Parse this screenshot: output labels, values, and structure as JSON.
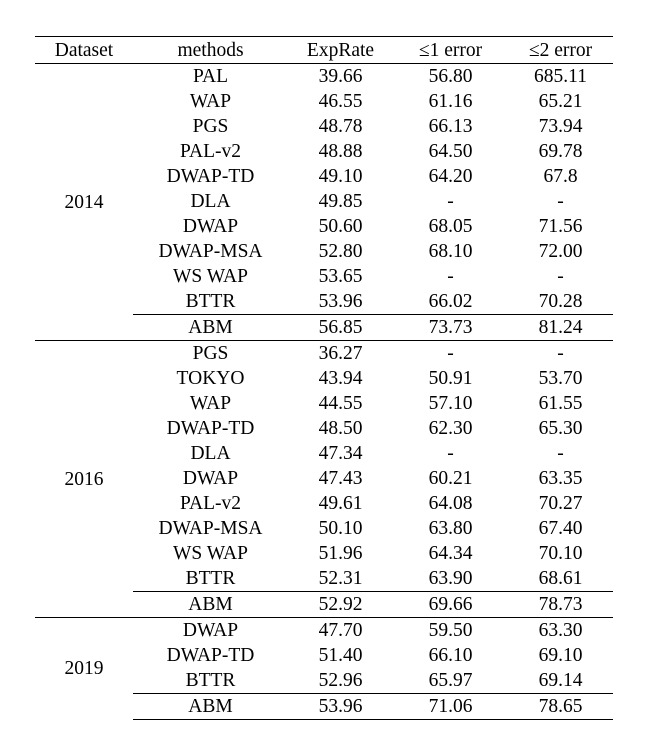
{
  "table": {
    "headers": [
      "Dataset",
      "methods",
      "ExpRate",
      "≤1 error",
      "≤2 error"
    ],
    "groups": [
      {
        "dataset": "2014",
        "rows": [
          {
            "method": "PAL",
            "exprate": "39.66",
            "e1": "56.80",
            "e2": "685.11"
          },
          {
            "method": "WAP",
            "exprate": "46.55",
            "e1": "61.16",
            "e2": "65.21"
          },
          {
            "method": "PGS",
            "exprate": "48.78",
            "e1": "66.13",
            "e2": "73.94"
          },
          {
            "method": "PAL-v2",
            "exprate": "48.88",
            "e1": "64.50",
            "e2": "69.78"
          },
          {
            "method": "DWAP-TD",
            "exprate": "49.10",
            "e1": "64.20",
            "e2": "67.8"
          },
          {
            "method": "DLA",
            "exprate": "49.85",
            "e1": "-",
            "e2": "-"
          },
          {
            "method": "DWAP",
            "exprate": "50.60",
            "e1": "68.05",
            "e2": "71.56"
          },
          {
            "method": "DWAP-MSA",
            "exprate": "52.80",
            "e1": "68.10",
            "e2": "72.00"
          },
          {
            "method": "WS WAP",
            "exprate": "53.65",
            "e1": "-",
            "e2": "-"
          },
          {
            "method": "BTTR",
            "exprate": "53.96",
            "e1": "66.02",
            "e2": "70.28"
          },
          {
            "method": "ABM",
            "exprate": "56.85",
            "e1": "73.73",
            "e2": "81.24",
            "best": true,
            "bold": [
              "method",
              "exprate",
              "e1",
              "e2"
            ]
          }
        ]
      },
      {
        "dataset": "2016",
        "rows": [
          {
            "method": "PGS",
            "exprate": "36.27",
            "e1": "-",
            "e2": "-"
          },
          {
            "method": "TOKYO",
            "exprate": "43.94",
            "e1": "50.91",
            "e2": "53.70"
          },
          {
            "method": "WAP",
            "exprate": "44.55",
            "e1": "57.10",
            "e2": "61.55"
          },
          {
            "method": "DWAP-TD",
            "exprate": "48.50",
            "e1": "62.30",
            "e2": "65.30"
          },
          {
            "method": "DLA",
            "exprate": "47.34",
            "e1": "-",
            "e2": "-"
          },
          {
            "method": "DWAP",
            "exprate": "47.43",
            "e1": "60.21",
            "e2": "63.35"
          },
          {
            "method": "PAL-v2",
            "exprate": "49.61",
            "e1": "64.08",
            "e2": "70.27"
          },
          {
            "method": "DWAP-MSA",
            "exprate": "50.10",
            "e1": "63.80",
            "e2": "67.40"
          },
          {
            "method": "WS WAP",
            "exprate": "51.96",
            "e1": "64.34",
            "e2": "70.10"
          },
          {
            "method": "BTTR",
            "exprate": "52.31",
            "e1": "63.90",
            "e2": "68.61"
          },
          {
            "method": "ABM",
            "exprate": "52.92",
            "e1": "69.66",
            "e2": "78.73",
            "best": true,
            "bold": [
              "method",
              "e1",
              "e2"
            ]
          }
        ]
      },
      {
        "dataset": "2019",
        "rows": [
          {
            "method": "DWAP",
            "exprate": "47.70",
            "e1": "59.50",
            "e2": "63.30"
          },
          {
            "method": "DWAP-TD",
            "exprate": "51.40",
            "e1": "66.10",
            "e2": "69.10"
          },
          {
            "method": "BTTR",
            "exprate": "52.96",
            "e1": "65.97",
            "e2": "69.14"
          },
          {
            "method": "ABM",
            "exprate": "53.96",
            "e1": "71.06",
            "e2": "78.65",
            "best": true,
            "bold": [
              "method",
              "exprate",
              "e1",
              "e2"
            ]
          }
        ]
      }
    ]
  }
}
